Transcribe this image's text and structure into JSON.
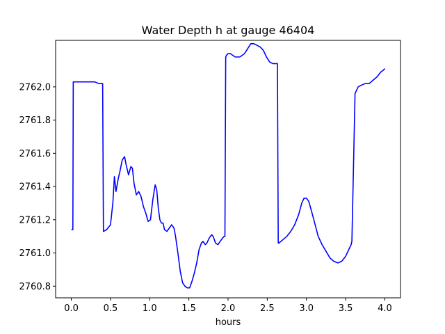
{
  "chart_data": {
    "type": "line",
    "title": "Water Depth h at gauge 46404",
    "xlabel": "hours",
    "ylabel": "",
    "xlim": [
      -0.2,
      4.2
    ],
    "ylim": [
      2760.73,
      2762.28
    ],
    "x_ticks": [
      0.0,
      0.5,
      1.0,
      1.5,
      2.0,
      2.5,
      3.0,
      3.5,
      4.0
    ],
    "x_tick_labels": [
      "0.0",
      "0.5",
      "1.0",
      "1.5",
      "2.0",
      "2.5",
      "3.0",
      "3.5",
      "4.0"
    ],
    "y_ticks": [
      2760.8,
      2761.0,
      2761.2,
      2761.4,
      2761.6,
      2761.8,
      2762.0
    ],
    "y_tick_labels": [
      "2760.8",
      "2761.0",
      "2761.2",
      "2761.4",
      "2761.6",
      "2761.8",
      "2762.0"
    ],
    "grid": false,
    "series": [
      {
        "color": "#0000ff",
        "x": [
          0.0,
          0.02,
          0.025,
          0.1,
          0.2,
          0.3,
          0.35,
          0.4,
          0.41,
          0.45,
          0.5,
          0.53,
          0.55,
          0.57,
          0.6,
          0.62,
          0.65,
          0.68,
          0.7,
          0.73,
          0.76,
          0.78,
          0.8,
          0.83,
          0.86,
          0.89,
          0.92,
          0.95,
          0.98,
          1.01,
          1.04,
          1.07,
          1.09,
          1.11,
          1.13,
          1.15,
          1.17,
          1.19,
          1.22,
          1.25,
          1.28,
          1.31,
          1.33,
          1.36,
          1.39,
          1.42,
          1.45,
          1.48,
          1.51,
          1.54,
          1.57,
          1.6,
          1.63,
          1.66,
          1.68,
          1.71,
          1.73,
          1.76,
          1.79,
          1.81,
          1.84,
          1.87,
          1.9,
          1.93,
          1.95,
          1.96,
          1.97,
          1.98,
          2.0,
          2.03,
          2.06,
          2.09,
          2.12,
          2.15,
          2.18,
          2.21,
          2.25,
          2.29,
          2.33,
          2.37,
          2.41,
          2.45,
          2.49,
          2.53,
          2.57,
          2.6,
          2.63,
          2.64,
          2.65,
          2.7,
          2.75,
          2.8,
          2.85,
          2.9,
          2.94,
          2.97,
          3.0,
          3.03,
          3.06,
          3.1,
          3.15,
          3.2,
          3.25,
          3.3,
          3.35,
          3.4,
          3.45,
          3.5,
          3.54,
          3.57,
          3.58,
          3.62,
          3.66,
          3.7,
          3.75,
          3.8,
          3.85,
          3.9,
          3.95,
          3.98,
          4.0
        ],
        "y": [
          2761.14,
          2761.14,
          2762.03,
          2762.03,
          2762.03,
          2762.03,
          2762.02,
          2762.02,
          2761.13,
          2761.14,
          2761.17,
          2761.3,
          2761.46,
          2761.37,
          2761.45,
          2761.49,
          2761.56,
          2761.58,
          2761.53,
          2761.47,
          2761.52,
          2761.51,
          2761.42,
          2761.35,
          2761.37,
          2761.34,
          2761.28,
          2761.24,
          2761.19,
          2761.2,
          2761.32,
          2761.41,
          2761.38,
          2761.27,
          2761.2,
          2761.18,
          2761.18,
          2761.14,
          2761.13,
          2761.15,
          2761.17,
          2761.15,
          2761.1,
          2761.0,
          2760.89,
          2760.82,
          2760.8,
          2760.79,
          2760.79,
          2760.83,
          2760.88,
          2760.94,
          2761.02,
          2761.06,
          2761.07,
          2761.05,
          2761.06,
          2761.09,
          2761.11,
          2761.1,
          2761.06,
          2761.05,
          2761.07,
          2761.09,
          2761.1,
          2761.1,
          2762.18,
          2762.19,
          2762.2,
          2762.2,
          2762.19,
          2762.18,
          2762.18,
          2762.18,
          2762.19,
          2762.2,
          2762.23,
          2762.26,
          2762.26,
          2762.25,
          2762.24,
          2762.22,
          2762.18,
          2762.15,
          2762.14,
          2762.14,
          2762.14,
          2761.06,
          2761.06,
          2761.08,
          2761.1,
          2761.13,
          2761.17,
          2761.23,
          2761.3,
          2761.33,
          2761.33,
          2761.31,
          2761.26,
          2761.19,
          2761.1,
          2761.05,
          2761.01,
          2760.97,
          2760.95,
          2760.94,
          2760.95,
          2760.98,
          2761.02,
          2761.05,
          2761.07,
          2761.96,
          2762.0,
          2762.01,
          2762.02,
          2762.02,
          2762.04,
          2762.06,
          2762.09,
          2762.1,
          2762.11
        ]
      }
    ]
  }
}
